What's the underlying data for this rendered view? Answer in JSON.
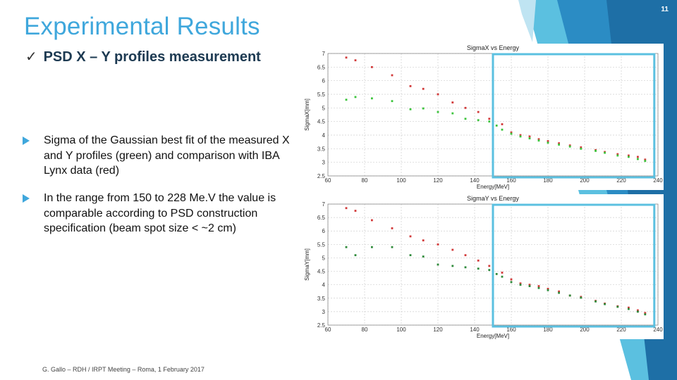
{
  "slide": {
    "title": "Experimental Results",
    "subtitle_mark": "✓",
    "subtitle": "PSD X – Y profiles measurement",
    "bullets": [
      "Sigma of the Gaussian best fit of the measured X and Y profiles (green) and comparison with IBA Lynx data (red)",
      "In the range from 150 to 228 Me.V the value is comparable according to PSD construction specification (beam spot size < ~2 cm)"
    ],
    "footer": "G. Gallo – RDH / IRPT Meeting – Roma, 1 February 2017",
    "page_number": "11",
    "accent_color": "#3fa7dc",
    "highlight_color": "#5bc0e0"
  },
  "chart_data": [
    {
      "type": "scatter",
      "title": "SigmaX vs Energy",
      "xlabel": "Energy[MeV]",
      "ylabel": "SigmaX[mm]",
      "xlim": [
        60,
        240
      ],
      "ylim": [
        2.5,
        7
      ],
      "xticks": [
        "60",
        "80",
        "100",
        "120",
        "140",
        "160",
        "180",
        "200",
        "220",
        "240"
      ],
      "yticks": [
        "2.5",
        "3",
        "3.5",
        "4",
        "4.5",
        "5",
        "5.5",
        "6",
        "6.5",
        "7"
      ],
      "grid": true,
      "highlight_range": [
        150,
        238
      ],
      "series": [
        {
          "color": "#d23a3a",
          "points": [
            [
              70,
              6.85
            ],
            [
              75,
              6.75
            ],
            [
              84,
              6.5
            ],
            [
              95,
              6.2
            ],
            [
              105,
              5.8
            ],
            [
              112,
              5.7
            ],
            [
              120,
              5.5
            ],
            [
              128,
              5.2
            ],
            [
              135,
              5.0
            ],
            [
              142,
              4.85
            ],
            [
              148,
              4.6
            ],
            [
              155,
              4.4
            ],
            [
              160,
              4.1
            ],
            [
              165,
              4.0
            ],
            [
              170,
              3.95
            ],
            [
              175,
              3.85
            ],
            [
              180,
              3.78
            ],
            [
              186,
              3.7
            ],
            [
              192,
              3.62
            ],
            [
              198,
              3.55
            ],
            [
              206,
              3.45
            ],
            [
              211,
              3.38
            ],
            [
              218,
              3.3
            ],
            [
              224,
              3.25
            ],
            [
              229,
              3.2
            ],
            [
              233,
              3.1
            ]
          ]
        },
        {
          "color": "#3cc43c",
          "points": [
            [
              70,
              5.3
            ],
            [
              75,
              5.4
            ],
            [
              84,
              5.35
            ],
            [
              95,
              5.25
            ],
            [
              105,
              4.95
            ],
            [
              112,
              4.98
            ],
            [
              120,
              4.85
            ],
            [
              128,
              4.8
            ],
            [
              135,
              4.6
            ],
            [
              142,
              4.55
            ],
            [
              148,
              4.5
            ],
            [
              152,
              4.35
            ],
            [
              155,
              4.2
            ],
            [
              160,
              4.05
            ],
            [
              165,
              3.95
            ],
            [
              170,
              3.88
            ],
            [
              175,
              3.8
            ],
            [
              180,
              3.72
            ],
            [
              186,
              3.65
            ],
            [
              192,
              3.58
            ],
            [
              198,
              3.5
            ],
            [
              206,
              3.42
            ],
            [
              211,
              3.35
            ],
            [
              218,
              3.25
            ],
            [
              224,
              3.2
            ],
            [
              229,
              3.12
            ],
            [
              233,
              3.05
            ]
          ]
        }
      ]
    },
    {
      "type": "scatter",
      "title": "SigmaY vs Energy",
      "xlabel": "Energy[MeV]",
      "ylabel": "SigmaY[mm]",
      "xlim": [
        60,
        240
      ],
      "ylim": [
        2.5,
        7
      ],
      "xticks": [
        "60",
        "80",
        "100",
        "120",
        "140",
        "160",
        "180",
        "200",
        "220",
        "240"
      ],
      "yticks": [
        "2.5",
        "3",
        "3.5",
        "4",
        "4.5",
        "5",
        "5.5",
        "6",
        "6.5",
        "7"
      ],
      "grid": true,
      "highlight_range": [
        150,
        238
      ],
      "series": [
        {
          "color": "#d23a3a",
          "points": [
            [
              70,
              6.85
            ],
            [
              75,
              6.75
            ],
            [
              84,
              6.4
            ],
            [
              95,
              6.1
            ],
            [
              105,
              5.8
            ],
            [
              112,
              5.65
            ],
            [
              120,
              5.5
            ],
            [
              128,
              5.3
            ],
            [
              135,
              5.1
            ],
            [
              142,
              4.9
            ],
            [
              148,
              4.7
            ],
            [
              155,
              4.45
            ],
            [
              160,
              4.2
            ],
            [
              165,
              4.05
            ],
            [
              170,
              4.0
            ],
            [
              175,
              3.95
            ],
            [
              180,
              3.85
            ],
            [
              186,
              3.75
            ],
            [
              192,
              3.6
            ],
            [
              198,
              3.55
            ],
            [
              206,
              3.4
            ],
            [
              211,
              3.3
            ],
            [
              218,
              3.2
            ],
            [
              224,
              3.15
            ],
            [
              229,
              3.05
            ],
            [
              233,
              2.95
            ]
          ]
        },
        {
          "color": "#2e8a3a",
          "points": [
            [
              70,
              5.4
            ],
            [
              75,
              5.1
            ],
            [
              84,
              5.4
            ],
            [
              95,
              5.4
            ],
            [
              105,
              5.1
            ],
            [
              112,
              5.05
            ],
            [
              120,
              4.75
            ],
            [
              128,
              4.7
            ],
            [
              135,
              4.65
            ],
            [
              142,
              4.6
            ],
            [
              148,
              4.55
            ],
            [
              152,
              4.4
            ],
            [
              155,
              4.3
            ],
            [
              160,
              4.1
            ],
            [
              165,
              4.0
            ],
            [
              170,
              3.95
            ],
            [
              175,
              3.88
            ],
            [
              180,
              3.8
            ],
            [
              186,
              3.7
            ],
            [
              192,
              3.6
            ],
            [
              198,
              3.52
            ],
            [
              206,
              3.38
            ],
            [
              211,
              3.28
            ],
            [
              218,
              3.18
            ],
            [
              224,
              3.1
            ],
            [
              229,
              3.0
            ],
            [
              233,
              2.9
            ]
          ]
        }
      ]
    }
  ]
}
